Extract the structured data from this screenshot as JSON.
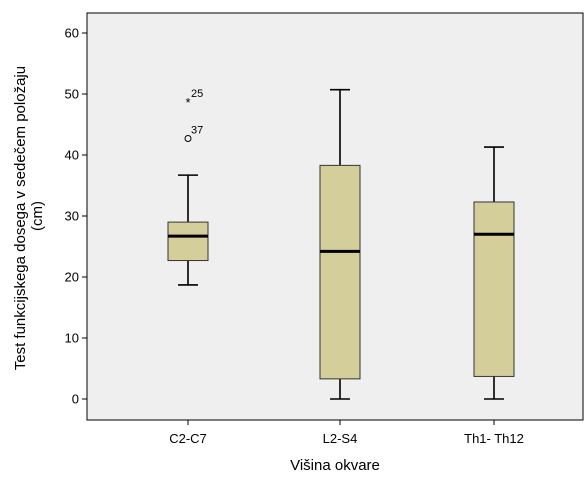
{
  "chart_data": {
    "type": "boxplot",
    "xlabel": "Višina okvare",
    "ylabel_lines": [
      "Test funkcijskega dosega v sedečem položaju",
      "(cm)"
    ],
    "ylim": [
      -3,
      63
    ],
    "yticks": [
      0,
      10,
      20,
      30,
      40,
      50,
      60
    ],
    "grid": false,
    "box_color": "#d4cf9a",
    "plot_background": "#efefef",
    "categories": [
      "C2-C7",
      "L2-S4",
      "Th1- Th12"
    ],
    "boxes": [
      {
        "category": "C2-C7",
        "whisker_low": 18.7,
        "q1": 22.7,
        "median": 26.7,
        "q3": 29.0,
        "whisker_high": 36.7,
        "outliers": [
          {
            "label": "25",
            "value": 48.7,
            "marker": "star"
          },
          {
            "label": "37",
            "value": 42.7,
            "marker": "circle"
          }
        ]
      },
      {
        "category": "L2-S4",
        "whisker_low": 0,
        "q1": 3.3,
        "median": 24.2,
        "q3": 38.3,
        "whisker_high": 50.7,
        "outliers": []
      },
      {
        "category": "Th1- Th12",
        "whisker_low": 0,
        "q1": 3.7,
        "median": 27.0,
        "q3": 32.3,
        "whisker_high": 41.3,
        "outliers": []
      }
    ]
  }
}
